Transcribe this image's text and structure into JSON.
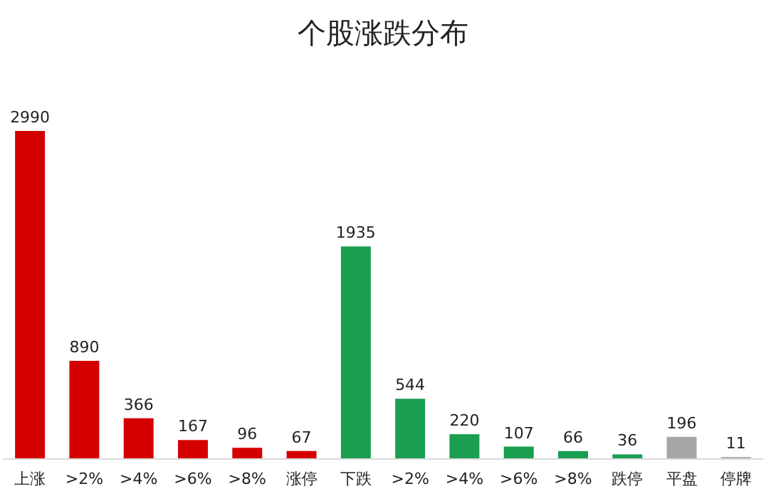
{
  "chart_data": {
    "type": "bar",
    "title": "个股涨跌分布",
    "categories": [
      "上涨",
      ">2%",
      ">4%",
      ">6%",
      ">8%",
      "涨停",
      "下跌",
      ">2%",
      ">4%",
      ">6%",
      ">8%",
      "跌停",
      "平盘",
      "停牌"
    ],
    "values": [
      2990,
      890,
      366,
      167,
      96,
      67,
      1935,
      544,
      220,
      107,
      66,
      36,
      196,
      11
    ],
    "colors": [
      "#d40000",
      "#d40000",
      "#d40000",
      "#d40000",
      "#d40000",
      "#d40000",
      "#1a9e50",
      "#1a9e50",
      "#1a9e50",
      "#1a9e50",
      "#1a9e50",
      "#1a9e50",
      "#a6a6a6",
      "#a6a6a6"
    ],
    "data_labels": true
  }
}
